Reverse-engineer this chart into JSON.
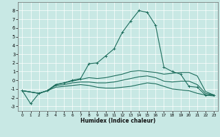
{
  "title": "",
  "xlabel": "Humidex (Indice chaleur)",
  "xlim": [
    -0.5,
    23.5
  ],
  "ylim": [
    -3.5,
    9.0
  ],
  "yticks": [
    -3,
    -2,
    -1,
    0,
    1,
    2,
    3,
    4,
    5,
    6,
    7,
    8
  ],
  "xticks": [
    0,
    1,
    2,
    3,
    4,
    5,
    6,
    7,
    8,
    9,
    10,
    11,
    12,
    13,
    14,
    15,
    16,
    17,
    18,
    19,
    20,
    21,
    22,
    23
  ],
  "background_color": "#c8e8e4",
  "grid_color": "#ffffff",
  "line_color": "#1a6b5a",
  "lines": [
    {
      "x": [
        0,
        1,
        2,
        3,
        4,
        5,
        6,
        7,
        8,
        9,
        10,
        11,
        12,
        13,
        14,
        15,
        16,
        17,
        18,
        19,
        20,
        21,
        22,
        23
      ],
      "y": [
        -1.2,
        -2.7,
        -1.5,
        -1.2,
        -0.5,
        -0.3,
        0.0,
        0.2,
        1.9,
        2.0,
        2.8,
        3.6,
        5.5,
        6.8,
        8.0,
        7.8,
        6.3,
        1.5,
        1.0,
        0.7,
        -0.7,
        -0.8,
        -1.7,
        -1.7
      ],
      "marker": true
    },
    {
      "x": [
        0,
        2,
        3,
        4,
        5,
        6,
        7,
        8,
        9,
        10,
        11,
        12,
        13,
        14,
        15,
        16,
        17,
        18,
        19,
        20,
        21,
        22,
        23
      ],
      "y": [
        -1.2,
        -1.5,
        -1.2,
        -0.5,
        -0.3,
        -0.1,
        0.1,
        0.3,
        0.2,
        0.3,
        0.5,
        0.7,
        1.0,
        1.1,
        1.0,
        0.9,
        0.7,
        0.8,
        0.9,
        0.9,
        0.5,
        -1.3,
        -1.7
      ],
      "marker": false
    },
    {
      "x": [
        0,
        2,
        3,
        4,
        5,
        6,
        7,
        8,
        9,
        10,
        11,
        12,
        13,
        14,
        15,
        16,
        17,
        18,
        19,
        20,
        21,
        22,
        23
      ],
      "y": [
        -1.2,
        -1.5,
        -1.2,
        -0.6,
        -0.5,
        -0.3,
        -0.2,
        -0.2,
        -0.3,
        -0.3,
        -0.2,
        0.0,
        0.2,
        0.4,
        0.5,
        0.3,
        -0.1,
        -0.2,
        -0.1,
        -0.1,
        -0.5,
        -1.5,
        -1.7
      ],
      "marker": false
    },
    {
      "x": [
        0,
        2,
        3,
        4,
        5,
        6,
        7,
        8,
        9,
        10,
        11,
        12,
        13,
        14,
        15,
        16,
        17,
        18,
        19,
        20,
        21,
        22,
        23
      ],
      "y": [
        -1.2,
        -1.5,
        -1.2,
        -0.8,
        -0.7,
        -0.6,
        -0.5,
        -0.6,
        -0.8,
        -0.9,
        -0.9,
        -0.8,
        -0.7,
        -0.5,
        -0.3,
        -0.4,
        -0.7,
        -1.0,
        -1.1,
        -1.2,
        -1.5,
        -1.7,
        -1.8
      ],
      "marker": false
    }
  ]
}
